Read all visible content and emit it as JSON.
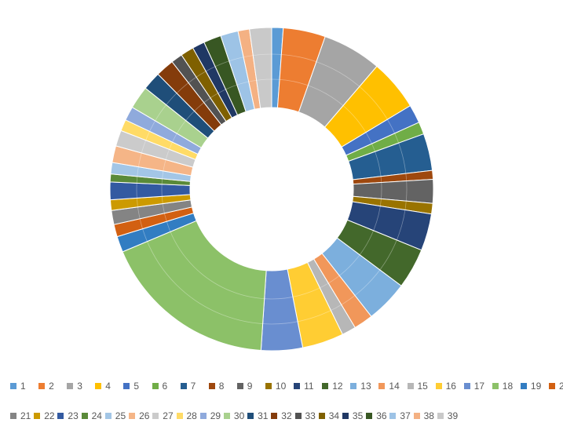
{
  "chart_data": {
    "type": "donut",
    "categories": [
      "1",
      "2",
      "3",
      "4",
      "5",
      "6",
      "7",
      "8",
      "9",
      "10",
      "11",
      "12",
      "13",
      "14",
      "15",
      "16",
      "17",
      "18",
      "19",
      "20",
      "21",
      "22",
      "23",
      "24",
      "25",
      "26",
      "27",
      "28",
      "29",
      "30",
      "31",
      "32",
      "33",
      "34",
      "35",
      "36",
      "37",
      "38",
      "39"
    ],
    "series": [
      {
        "values": [
          1.3,
          4.8,
          6.7,
          5.8,
          2.1,
          1.4,
          4.2,
          1.0,
          2.7,
          1.2,
          4.2,
          4.6,
          4.8,
          2.2,
          1.6,
          4.7,
          4.7,
          20.0,
          1.8,
          1.4,
          1.6,
          1.2,
          2.0,
          0.9,
          1.3,
          1.9,
          1.8,
          1.3,
          1.6,
          2.6,
          2.1,
          2.1,
          1.3,
          1.5,
          1.4,
          2.0,
          2.0,
          1.3,
          2.5
        ]
      }
    ],
    "colors": [
      "#5B9BD5",
      "#ED7D31",
      "#A5A5A5",
      "#FFC000",
      "#4472C4",
      "#70AD47",
      "#255E91",
      "#9E480E",
      "#636363",
      "#997300",
      "#264478",
      "#43682B",
      "#7CAFDD",
      "#F1975A",
      "#B7B7B7",
      "#FFCD33",
      "#698ED0",
      "#8CC168",
      "#327DC2",
      "#D26012",
      "#848484",
      "#CC9A00",
      "#335AA1",
      "#5A8A39",
      "#A3C6E6",
      "#F5B587",
      "#CBCBCB",
      "#FFDB66",
      "#8FAADC",
      "#A9D18E",
      "#1F4E79",
      "#843C0B",
      "#525252",
      "#7F6000",
      "#203864",
      "#385723",
      "#9DC3E6",
      "#F4B183",
      "#C9C9C9"
    ],
    "legend_position": "bottom"
  }
}
